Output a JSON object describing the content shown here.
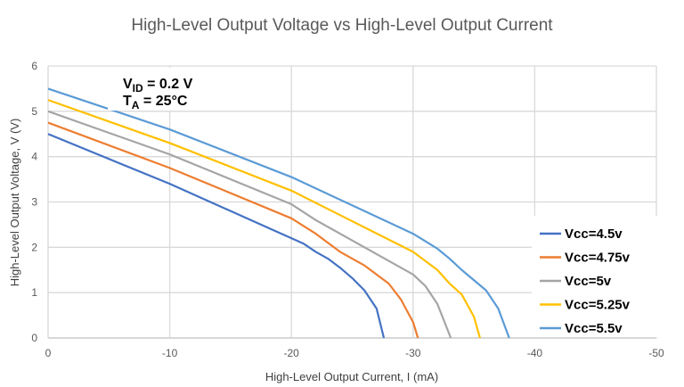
{
  "chart_data": {
    "type": "line",
    "title": "High-Level Output Voltage vs High-Level Output Current",
    "xlabel": "High-Level Output Current, I (mA)",
    "ylabel": "High-Level Output Voltage, V (V)",
    "xlim": [
      0,
      -50
    ],
    "ylim": [
      0,
      6
    ],
    "xticks": [
      0,
      -10,
      -20,
      -30,
      -40,
      -50
    ],
    "yticks": [
      0,
      1,
      2,
      3,
      4,
      5,
      6
    ],
    "grid": true,
    "legend_position": "right",
    "annotation": {
      "line1_main": "V",
      "line1_sub": "ID",
      "line1_rest": " = 0.2 V",
      "line2_main": "T",
      "line2_sub": "A",
      "line2_rest": " = 25°C"
    },
    "series": [
      {
        "name": "Vcc=4.5v",
        "color": "#4472C4",
        "x": [
          0,
          -10,
          -20,
          -21,
          -22,
          -23,
          -24,
          -25,
          -26,
          -27,
          -27.6
        ],
        "y": [
          4.5,
          3.4,
          2.2,
          2.08,
          1.9,
          1.75,
          1.55,
          1.32,
          1.05,
          0.65,
          0
        ]
      },
      {
        "name": "Vcc=4.75v",
        "color": "#ED7D31",
        "x": [
          0,
          -10,
          -20,
          -22,
          -24,
          -26,
          -27,
          -28,
          -29,
          -30,
          -30.4
        ],
        "y": [
          4.75,
          3.75,
          2.64,
          2.3,
          1.9,
          1.6,
          1.4,
          1.2,
          0.85,
          0.35,
          0
        ]
      },
      {
        "name": "Vcc=5v",
        "color": "#A5A5A5",
        "x": [
          0,
          -10,
          -20,
          -22,
          -24,
          -26,
          -28,
          -30,
          -31,
          -32,
          -33.1
        ],
        "y": [
          5.0,
          4.05,
          2.95,
          2.6,
          2.3,
          2.0,
          1.7,
          1.4,
          1.15,
          0.75,
          0
        ]
      },
      {
        "name": "Vcc=5.25v",
        "color": "#FFC000",
        "x": [
          0,
          -10,
          -20,
          -30,
          -32,
          -33,
          -34,
          -35,
          -35.5
        ],
        "y": [
          5.25,
          4.3,
          3.25,
          1.9,
          1.5,
          1.2,
          0.96,
          0.47,
          0
        ]
      },
      {
        "name": "Vcc=5.5v",
        "color": "#5B9BD5",
        "x": [
          0,
          -10,
          -20,
          -30,
          -32,
          -33,
          -34,
          -36,
          -37,
          -37.9
        ],
        "y": [
          5.5,
          4.6,
          3.55,
          2.3,
          1.97,
          1.75,
          1.5,
          1.05,
          0.65,
          0
        ]
      }
    ]
  }
}
